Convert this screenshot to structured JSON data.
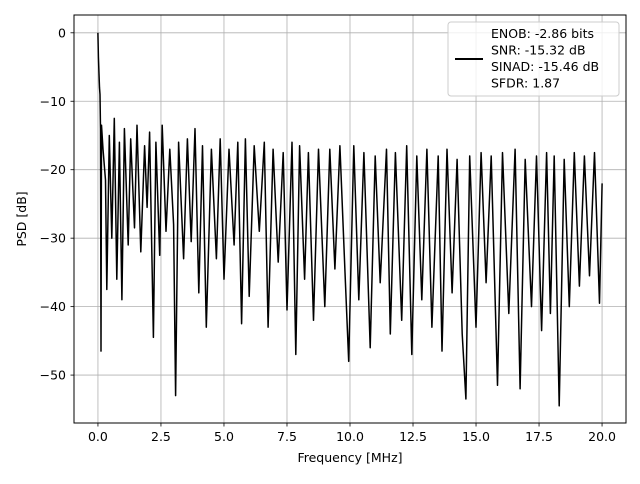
{
  "chart_data": {
    "type": "line",
    "title": "",
    "xlabel": "Frequency [MHz]",
    "ylabel": "PSD [dB]",
    "xlim": [
      -0.95,
      20.95
    ],
    "ylim": [
      -57.0,
      2.6
    ],
    "x_ticks": [
      0.0,
      2.5,
      5.0,
      7.5,
      10.0,
      12.5,
      15.0,
      17.5,
      20.0
    ],
    "x_tick_labels": [
      "0.0",
      "2.5",
      "5.0",
      "7.5",
      "10.0",
      "12.5",
      "15.0",
      "17.5",
      "20.0"
    ],
    "y_ticks": [
      0,
      -10,
      -20,
      -30,
      -40,
      -50
    ],
    "y_tick_labels": [
      "0",
      "−10",
      "−20",
      "−30",
      "−40",
      "−50"
    ],
    "grid": true,
    "legend_position": "top-right",
    "series": [
      {
        "name": "ENOB: -2.86 bits\nSNR: -15.32 dB\nSINAD: -15.46 dB\nSFDR: 1.87",
        "color": "#000000",
        "points": [
          [
            0.0,
            0.0
          ],
          [
            0.02,
            -3.5
          ],
          [
            0.04,
            -6.0
          ],
          [
            0.06,
            -8.0
          ],
          [
            0.08,
            -9.0
          ],
          [
            0.1,
            -14.0
          ],
          [
            0.12,
            -46.5
          ],
          [
            0.14,
            -13.5
          ],
          [
            0.2,
            -17.0
          ],
          [
            0.3,
            -21.5
          ],
          [
            0.35,
            -37.5
          ],
          [
            0.45,
            -15.0
          ],
          [
            0.55,
            -30.0
          ],
          [
            0.65,
            -12.5
          ],
          [
            0.75,
            -36.0
          ],
          [
            0.85,
            -16.0
          ],
          [
            0.95,
            -39.0
          ],
          [
            1.05,
            -14.0
          ],
          [
            1.2,
            -31.0
          ],
          [
            1.3,
            -15.5
          ],
          [
            1.45,
            -28.5
          ],
          [
            1.55,
            -13.5
          ],
          [
            1.7,
            -32.0
          ],
          [
            1.85,
            -16.5
          ],
          [
            1.95,
            -25.5
          ],
          [
            2.05,
            -14.5
          ],
          [
            2.2,
            -44.5
          ],
          [
            2.3,
            -16.0
          ],
          [
            2.45,
            -32.5
          ],
          [
            2.55,
            -13.5
          ],
          [
            2.7,
            -29.0
          ],
          [
            2.85,
            -17.0
          ],
          [
            3.0,
            -28.0
          ],
          [
            3.08,
            -53.0
          ],
          [
            3.2,
            -16.0
          ],
          [
            3.4,
            -33.0
          ],
          [
            3.55,
            -15.5
          ],
          [
            3.7,
            -30.5
          ],
          [
            3.85,
            -14.0
          ],
          [
            4.0,
            -38.0
          ],
          [
            4.15,
            -16.5
          ],
          [
            4.3,
            -43.0
          ],
          [
            4.5,
            -17.0
          ],
          [
            4.7,
            -33.0
          ],
          [
            4.85,
            -15.5
          ],
          [
            5.0,
            -36.0
          ],
          [
            5.2,
            -17.0
          ],
          [
            5.4,
            -31.0
          ],
          [
            5.55,
            -16.0
          ],
          [
            5.7,
            -42.5
          ],
          [
            5.85,
            -15.5
          ],
          [
            6.0,
            -38.5
          ],
          [
            6.2,
            -16.5
          ],
          [
            6.4,
            -29.0
          ],
          [
            6.6,
            -16.0
          ],
          [
            6.75,
            -43.0
          ],
          [
            6.95,
            -17.0
          ],
          [
            7.15,
            -33.5
          ],
          [
            7.35,
            -17.5
          ],
          [
            7.5,
            -40.5
          ],
          [
            7.7,
            -16.0
          ],
          [
            7.85,
            -47.0
          ],
          [
            8.0,
            -16.5
          ],
          [
            8.2,
            -36.0
          ],
          [
            8.35,
            -17.5
          ],
          [
            8.55,
            -42.0
          ],
          [
            8.75,
            -17.0
          ],
          [
            9.0,
            -40.0
          ],
          [
            9.2,
            -17.0
          ],
          [
            9.4,
            -34.5
          ],
          [
            9.6,
            -16.5
          ],
          [
            9.8,
            -35.0
          ],
          [
            9.95,
            -48.0
          ],
          [
            10.15,
            -16.5
          ],
          [
            10.35,
            -39.0
          ],
          [
            10.55,
            -17.5
          ],
          [
            10.8,
            -46.0
          ],
          [
            11.0,
            -18.0
          ],
          [
            11.2,
            -36.5
          ],
          [
            11.45,
            -17.0
          ],
          [
            11.6,
            -44.0
          ],
          [
            11.8,
            -17.5
          ],
          [
            12.05,
            -42.0
          ],
          [
            12.25,
            -16.5
          ],
          [
            12.45,
            -47.0
          ],
          [
            12.65,
            -18.0
          ],
          [
            12.85,
            -39.0
          ],
          [
            13.05,
            -17.0
          ],
          [
            13.25,
            -43.0
          ],
          [
            13.5,
            -18.0
          ],
          [
            13.65,
            -46.5
          ],
          [
            13.85,
            -17.0
          ],
          [
            14.05,
            -38.0
          ],
          [
            14.25,
            -18.5
          ],
          [
            14.45,
            -44.0
          ],
          [
            14.6,
            -53.5
          ],
          [
            14.75,
            -18.0
          ],
          [
            15.0,
            -43.0
          ],
          [
            15.2,
            -17.5
          ],
          [
            15.4,
            -36.5
          ],
          [
            15.6,
            -18.0
          ],
          [
            15.85,
            -51.5
          ],
          [
            16.05,
            -17.5
          ],
          [
            16.3,
            -41.0
          ],
          [
            16.55,
            -17.0
          ],
          [
            16.75,
            -52.0
          ],
          [
            16.95,
            -18.5
          ],
          [
            17.2,
            -40.0
          ],
          [
            17.4,
            -18.0
          ],
          [
            17.6,
            -43.5
          ],
          [
            17.8,
            -17.5
          ],
          [
            17.95,
            -41.0
          ],
          [
            18.1,
            -18.0
          ],
          [
            18.3,
            -54.5
          ],
          [
            18.5,
            -18.5
          ],
          [
            18.7,
            -40.0
          ],
          [
            18.9,
            -17.5
          ],
          [
            19.1,
            -37.0
          ],
          [
            19.3,
            -18.0
          ],
          [
            19.5,
            -35.5
          ],
          [
            19.7,
            -17.5
          ],
          [
            19.9,
            -39.5
          ],
          [
            20.0,
            -22.0
          ]
        ]
      }
    ]
  }
}
